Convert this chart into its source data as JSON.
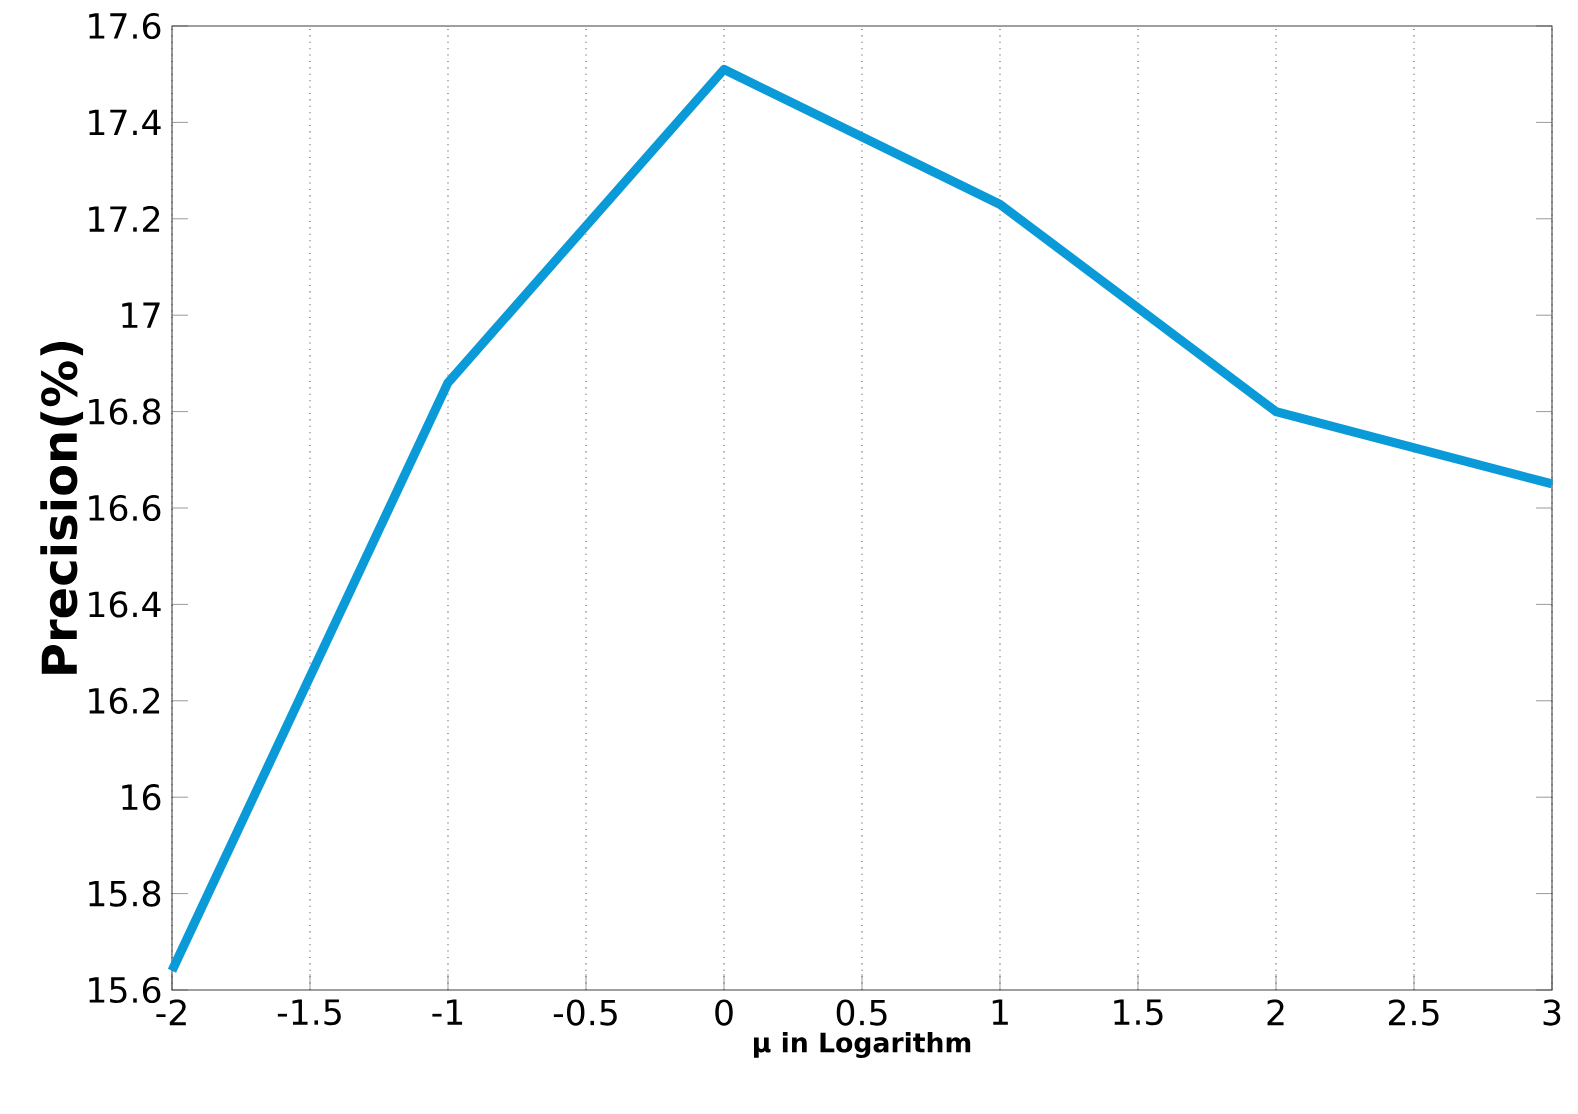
{
  "chart_data": {
    "type": "line",
    "xlabel": "μ in Logarithm",
    "ylabel": "Precision(%)",
    "x": [
      -2,
      -1,
      0,
      1,
      2,
      3
    ],
    "series": [
      {
        "color": "#0a9ad8",
        "values": [
          15.64,
          16.86,
          17.51,
          17.23,
          16.8,
          16.65
        ]
      }
    ],
    "xlim": [
      -2,
      3
    ],
    "ylim": [
      15.6,
      17.6
    ],
    "xticks": [
      -2,
      -1.5,
      -1,
      -0.5,
      0,
      0.5,
      1,
      1.5,
      2,
      2.5,
      3
    ],
    "yticks": [
      15.6,
      15.8,
      16,
      16.2,
      16.4,
      16.6,
      16.8,
      17,
      17.2,
      17.4,
      17.6
    ],
    "grid": "x",
    "line_style": "solid",
    "marker": "none"
  }
}
